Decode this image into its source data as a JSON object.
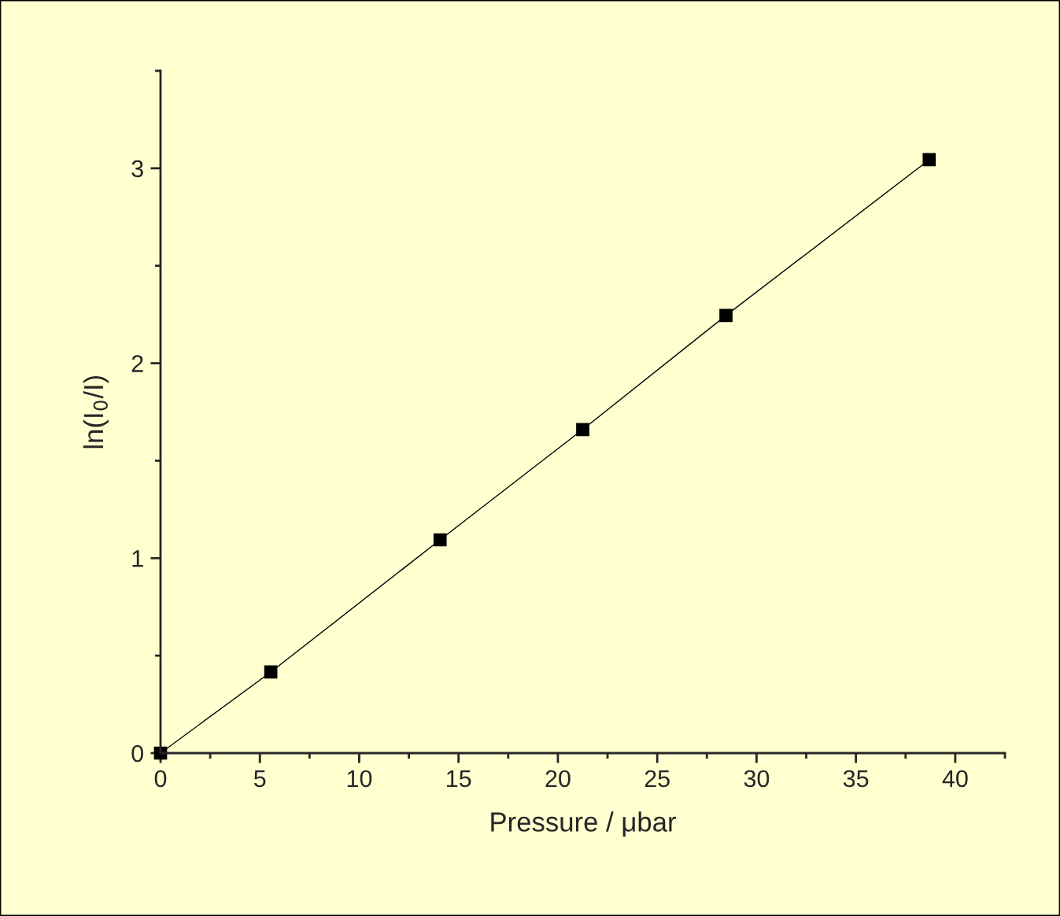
{
  "chart_data": {
    "type": "line",
    "x": [
      0,
      5.55,
      14.07,
      21.25,
      28.46,
      38.69
    ],
    "series": [
      {
        "color": "#000000",
        "values": [
          0,
          0.416,
          1.094,
          1.66,
          2.245,
          3.044
        ]
      }
    ],
    "marker": "square",
    "line_style": "solid",
    "xlabel": "Pressure / μbar",
    "ylabel": "ln(I$_{0}$/I)",
    "xlim": [
      0,
      42.5
    ],
    "ylim": [
      0,
      3.5
    ],
    "xticks": [
      0,
      {
        "value": 2.5,
        "label": null
      },
      5,
      {
        "value": 7.5,
        "label": null
      },
      10,
      {
        "value": 12.5,
        "label": null
      },
      15,
      {
        "value": 17.5,
        "label": null
      },
      20,
      {
        "value": 22.5,
        "label": null
      },
      25,
      {
        "value": 27.5,
        "label": null
      },
      30,
      {
        "value": 32.5,
        "label": null
      },
      35,
      {
        "value": 37.5,
        "label": null
      },
      40,
      {
        "value": 42.5,
        "label": null
      }
    ],
    "yticks": [
      0,
      {
        "value": 0.5,
        "label": null
      },
      1,
      {
        "value": 1.5,
        "label": null
      },
      2,
      {
        "value": 2.5,
        "label": null
      },
      3,
      {
        "value": 3.5,
        "label": null
      }
    ],
    "grid": false,
    "legend": false
  }
}
